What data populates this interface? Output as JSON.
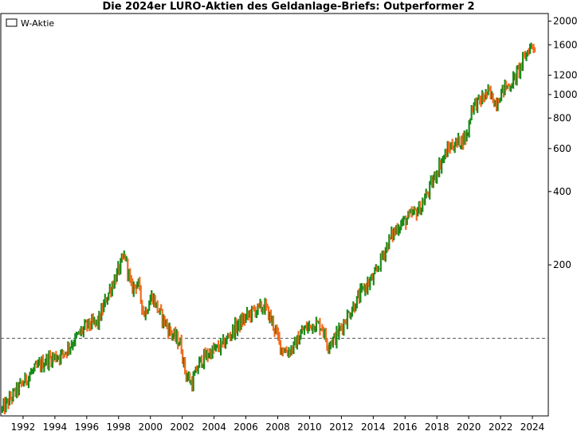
{
  "chart_data": {
    "type": "ohlc",
    "title": "Die 2024er LURO-Aktien des Geldanlage-Briefs: Outperformer 2",
    "legend": {
      "label": "W-Aktie",
      "placement": "top-left"
    },
    "y_scale": "log",
    "ylim": [
      48,
      2150
    ],
    "y_ticks": [
      200,
      400,
      600,
      800,
      1000,
      1200,
      1600,
      2000
    ],
    "x_ticks": [
      "1992",
      "1994",
      "1996",
      "1998",
      "2000",
      "2002",
      "2004",
      "2006",
      "2008",
      "2010",
      "2012",
      "2014",
      "2016",
      "2018",
      "2020",
      "2022",
      "2024"
    ],
    "xlim": [
      1990.6,
      2025.0
    ],
    "reference_line": {
      "y": 100,
      "style": "dashed"
    },
    "colors": {
      "up": "#1a8a1a",
      "down": "#f26a1e"
    },
    "path": [
      [
        1990.7,
        51
      ],
      [
        1991.5,
        60
      ],
      [
        1992.5,
        72
      ],
      [
        1993.5,
        82
      ],
      [
        1994.5,
        86
      ],
      [
        1995.3,
        100
      ],
      [
        1996.0,
        113
      ],
      [
        1996.7,
        116
      ],
      [
        1997.3,
        150
      ],
      [
        1998.0,
        190
      ],
      [
        1998.4,
        220
      ],
      [
        1998.8,
        160
      ],
      [
        1999.2,
        170
      ],
      [
        1999.6,
        125
      ],
      [
        2000.1,
        150
      ],
      [
        2000.5,
        130
      ],
      [
        2001.3,
        105
      ],
      [
        2001.9,
        95
      ],
      [
        2002.2,
        72
      ],
      [
        2002.6,
        65
      ],
      [
        2003.1,
        80
      ],
      [
        2003.8,
        88
      ],
      [
        2004.5,
        93
      ],
      [
        2005.3,
        110
      ],
      [
        2005.9,
        120
      ],
      [
        2006.5,
        130
      ],
      [
        2007.2,
        135
      ],
      [
        2007.7,
        115
      ],
      [
        2008.2,
        92
      ],
      [
        2008.6,
        88
      ],
      [
        2009.0,
        92
      ],
      [
        2009.6,
        108
      ],
      [
        2010.3,
        115
      ],
      [
        2010.8,
        112
      ],
      [
        2011.1,
        95
      ],
      [
        2011.6,
        100
      ],
      [
        2012.2,
        118
      ],
      [
        2012.9,
        140
      ],
      [
        2013.4,
        160
      ],
      [
        2014.1,
        180
      ],
      [
        2014.6,
        220
      ],
      [
        2015.1,
        260
      ],
      [
        2015.6,
        290
      ],
      [
        2016.3,
        315
      ],
      [
        2017.0,
        345
      ],
      [
        2017.6,
        420
      ],
      [
        2018.2,
        520
      ],
      [
        2018.8,
        610
      ],
      [
        2019.4,
        640
      ],
      [
        2019.9,
        680
      ],
      [
        2020.2,
        900
      ],
      [
        2020.8,
        950
      ],
      [
        2021.2,
        1020
      ],
      [
        2021.7,
        930
      ],
      [
        2022.2,
        1060
      ],
      [
        2022.7,
        1110
      ],
      [
        2023.2,
        1280
      ],
      [
        2023.8,
        1560
      ],
      [
        2024.2,
        1610
      ]
    ]
  }
}
